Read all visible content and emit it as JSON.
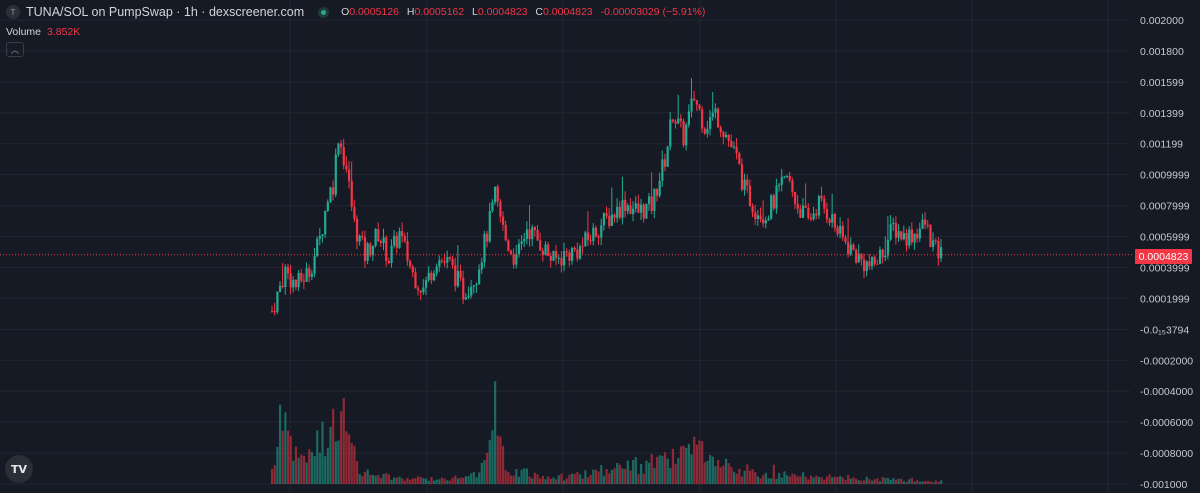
{
  "legend": {
    "symbol_icon": "T",
    "title": "TUNA/SOL on PumpSwap · 1h · dexscreener.com",
    "ohlc": [
      {
        "k": "O",
        "v": "0.0005126"
      },
      {
        "k": "H",
        "v": "0.0005162"
      },
      {
        "k": "L",
        "v": "0.0004823"
      },
      {
        "k": "C",
        "v": "0.0004823"
      },
      {
        "k": "",
        "v": "-0.00003029 (−5.91%)"
      }
    ],
    "volume_label": "Volume",
    "volume_value": "3.852K",
    "collapse_icon": "chevron-up-icon"
  },
  "logo_text": "TV",
  "colors": {
    "background": "#161a25",
    "grid": "#232632",
    "up": "#22ab94",
    "down": "#f23645",
    "axis_text": "#c5c8d0",
    "price_line": "#f23645"
  },
  "chart_data": {
    "type": "candlestick",
    "price_axis_labels": [
      {
        "value": 0.002,
        "label": "0.002000"
      },
      {
        "value": 0.0018,
        "label": "0.001800"
      },
      {
        "value": 0.0016,
        "label": "0.001599"
      },
      {
        "value": 0.0014,
        "label": "0.001399"
      },
      {
        "value": 0.0012,
        "label": "0.001199"
      },
      {
        "value": 0.001,
        "label": "0.0009999"
      },
      {
        "value": 0.0008,
        "label": "0.0007999"
      },
      {
        "value": 0.0006,
        "label": "0.0005999"
      },
      {
        "value": 0.0004,
        "label": "0.0003999"
      },
      {
        "value": 0.0002,
        "label": "0.0001999"
      },
      {
        "value": 0.0,
        "label": "-0.0₁₅3794"
      },
      {
        "value": -0.0002,
        "label": "-0.0002000"
      },
      {
        "value": -0.0004,
        "label": "-0.0004000"
      },
      {
        "value": -0.0006,
        "label": "-0.0006000"
      },
      {
        "value": -0.0008,
        "label": "-0.0008000"
      },
      {
        "value": -0.001,
        "label": "-0.001000"
      }
    ],
    "ylim": [
      -0.001,
      0.002
    ],
    "last_price": 0.0004823,
    "last_price_label": "0.0004823",
    "price_anchors": [
      [
        0,
        0.00012
      ],
      [
        2,
        0.00022
      ],
      [
        5,
        0.00038
      ],
      [
        9,
        0.00028
      ],
      [
        14,
        0.00038
      ],
      [
        18,
        0.00058
      ],
      [
        21,
        0.00086
      ],
      [
        23,
        0.00094
      ],
      [
        25,
        0.00126
      ],
      [
        28,
        0.00104
      ],
      [
        31,
        0.00068
      ],
      [
        35,
        0.00048
      ],
      [
        40,
        0.00062
      ],
      [
        44,
        0.00046
      ],
      [
        48,
        0.00062
      ],
      [
        53,
        0.00036
      ],
      [
        57,
        0.00026
      ],
      [
        62,
        0.00046
      ],
      [
        67,
        0.00042
      ],
      [
        72,
        0.00024
      ],
      [
        77,
        0.00036
      ],
      [
        81,
        0.00062
      ],
      [
        84,
        0.00086
      ],
      [
        88,
        0.00058
      ],
      [
        92,
        0.00044
      ],
      [
        96,
        0.00066
      ],
      [
        101,
        0.00056
      ],
      [
        106,
        0.00044
      ],
      [
        110,
        0.00048
      ],
      [
        116,
        0.00052
      ],
      [
        123,
        0.00066
      ],
      [
        128,
        0.00074
      ],
      [
        133,
        0.00082
      ],
      [
        138,
        0.00076
      ],
      [
        143,
        0.0008
      ],
      [
        148,
        0.0011
      ],
      [
        151,
        0.0014
      ],
      [
        155,
        0.00124
      ],
      [
        159,
        0.0015
      ],
      [
        163,
        0.00132
      ],
      [
        167,
        0.0014
      ],
      [
        171,
        0.00126
      ],
      [
        175,
        0.0011
      ],
      [
        178,
        0.0009
      ],
      [
        182,
        0.00078
      ],
      [
        186,
        0.00074
      ],
      [
        190,
        0.00086
      ],
      [
        194,
        0.00098
      ],
      [
        198,
        0.0008
      ],
      [
        202,
        0.0007
      ],
      [
        206,
        0.00082
      ],
      [
        210,
        0.00074
      ],
      [
        214,
        0.0006
      ],
      [
        218,
        0.00052
      ],
      [
        222,
        0.00044
      ],
      [
        226,
        0.0004
      ],
      [
        230,
        0.0005
      ],
      [
        234,
        0.00066
      ],
      [
        238,
        0.0006
      ],
      [
        242,
        0.00062
      ],
      [
        246,
        0.00068
      ],
      [
        250,
        0.0005
      ],
      [
        252,
        0.00048
      ]
    ],
    "volume_anchors": [
      [
        0,
        0.2
      ],
      [
        3,
        0.5
      ],
      [
        5,
        0.95
      ],
      [
        8,
        0.45
      ],
      [
        12,
        0.25
      ],
      [
        16,
        0.55
      ],
      [
        20,
        0.6
      ],
      [
        23,
        0.8
      ],
      [
        25,
        1.0
      ],
      [
        29,
        0.55
      ],
      [
        33,
        0.15
      ],
      [
        45,
        0.08
      ],
      [
        60,
        0.06
      ],
      [
        75,
        0.1
      ],
      [
        80,
        0.25
      ],
      [
        84,
        0.7
      ],
      [
        88,
        0.2
      ],
      [
        100,
        0.1
      ],
      [
        110,
        0.08
      ],
      [
        125,
        0.18
      ],
      [
        135,
        0.22
      ],
      [
        150,
        0.3
      ],
      [
        155,
        0.35
      ],
      [
        160,
        0.45
      ],
      [
        165,
        0.25
      ],
      [
        175,
        0.15
      ],
      [
        190,
        0.12
      ],
      [
        200,
        0.1
      ],
      [
        215,
        0.08
      ],
      [
        230,
        0.06
      ],
      [
        252,
        0.03
      ]
    ]
  }
}
